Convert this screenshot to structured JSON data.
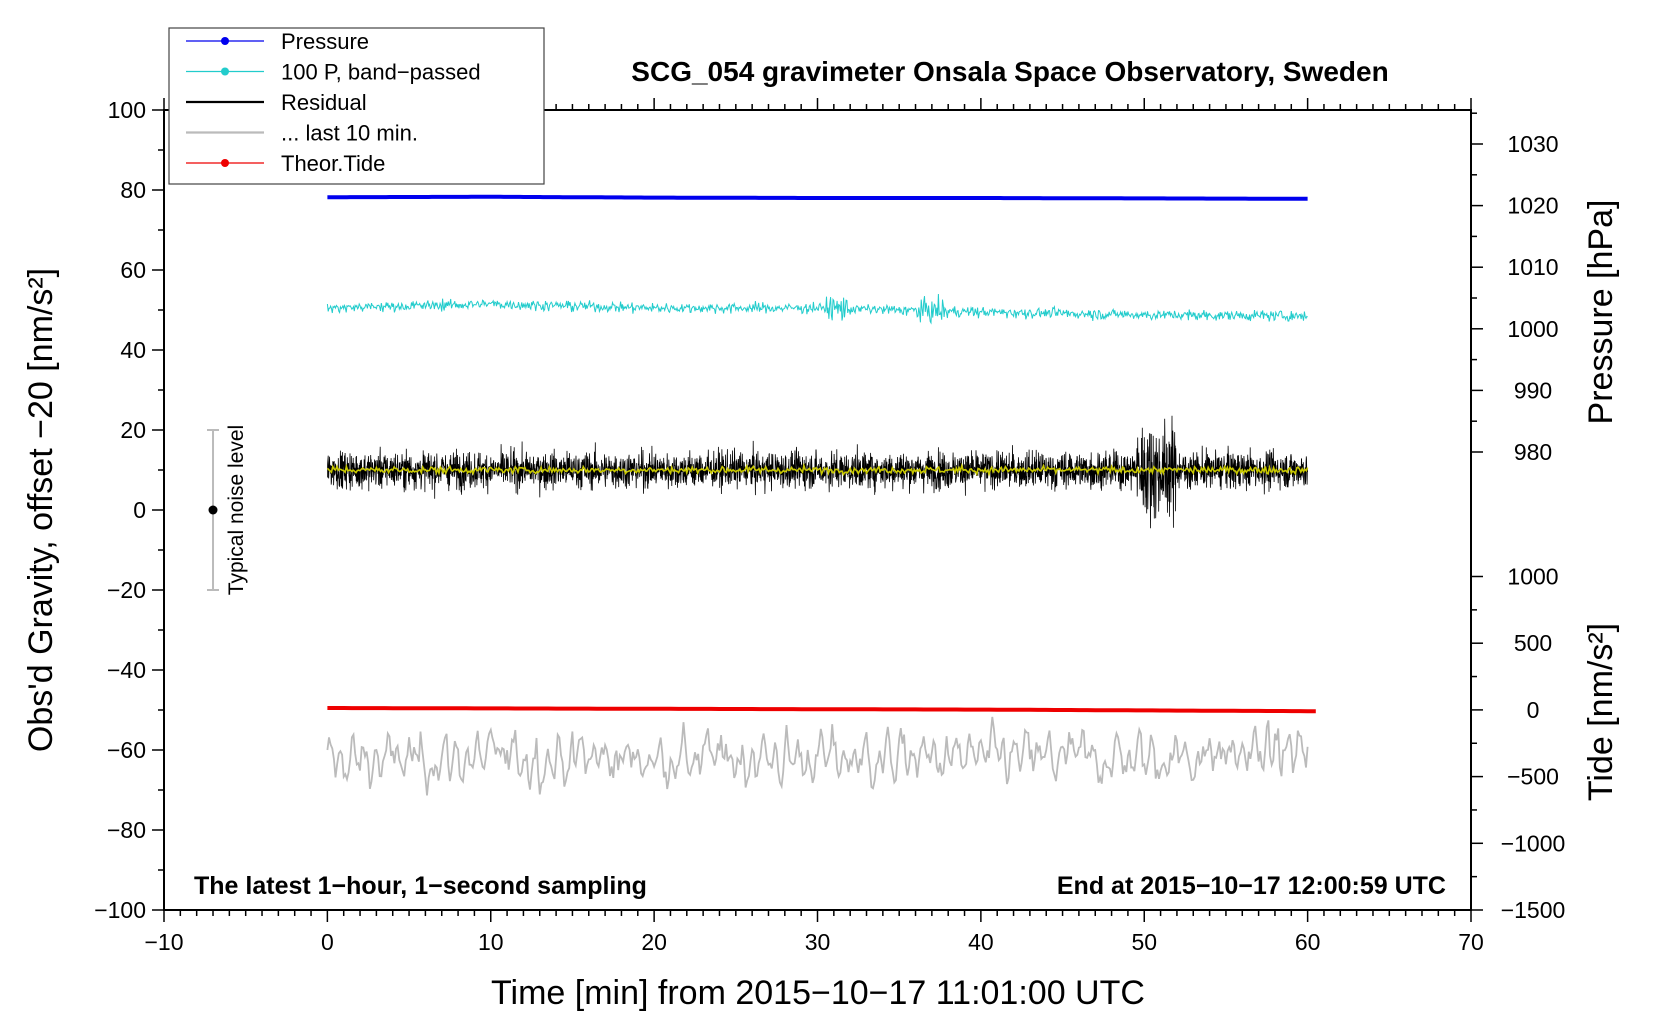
{
  "chart_data": {
    "type": "line",
    "title": "SCG_054 gravimeter Onsala Space Observatory, Sweden",
    "xlabel": "Time [min] from 2015−10−17 11:01:00 UTC",
    "ylabel": "Obs'd Gravity, offset −20 [nm/s²]",
    "xlim": [
      -10,
      70
    ],
    "ylim": [
      -100,
      100
    ],
    "x_ticks": [
      "−10",
      "0",
      "10",
      "20",
      "30",
      "40",
      "50",
      "60",
      "70"
    ],
    "y_ticks": [
      "−100",
      "−80",
      "−60",
      "−40",
      "−20",
      "0",
      "20",
      "40",
      "60",
      "80",
      "100"
    ],
    "right_axis_pressure": {
      "label": "Pressure [hPa]",
      "ticks": [
        "980",
        "990",
        "1000",
        "1010",
        "1020",
        "1030"
      ]
    },
    "right_axis_tide": {
      "label": "Tide [nm/s²]",
      "ticks": [
        "−1500",
        "−1000",
        "−500",
        "0",
        "500",
        "1000"
      ]
    },
    "annotations": {
      "bottom_left": "The latest 1−hour, 1−second sampling",
      "bottom_right": "End at 2015−10−17 12:00:59 UTC",
      "noise_bar": "Typical noise level"
    },
    "legend": {
      "placement": "top-left",
      "entries": [
        {
          "name": "Pressure",
          "color": "#0000ee",
          "marker": true
        },
        {
          "name": "100 P, band−passed",
          "color": "#22cccc",
          "marker": true
        },
        {
          "name": "Residual",
          "color": "#000000",
          "marker": false
        },
        {
          "name": "... last 10 min.",
          "color": "#bbbbbb",
          "marker": false
        },
        {
          "name": "Theor.Tide",
          "color": "#ee0000",
          "marker": true
        }
      ]
    },
    "series": [
      {
        "name": "Pressure",
        "color": "#0000ee",
        "x": [
          0,
          10,
          20,
          30,
          40,
          50,
          60
        ],
        "y": [
          78.2,
          78.3,
          78.1,
          78.0,
          78.0,
          77.9,
          77.8
        ]
      },
      {
        "name": "100 P, band−passed",
        "color": "#22cccc",
        "x": [
          0,
          10,
          20,
          30,
          40,
          50,
          60
        ],
        "y": [
          50.5,
          51.5,
          50.5,
          50.5,
          49.5,
          48.8,
          48.5
        ]
      },
      {
        "name": "Residual",
        "color": "#000000",
        "x": [
          0,
          10,
          20,
          30,
          40,
          50,
          60
        ],
        "y": [
          10,
          10,
          10,
          10,
          10,
          10,
          10
        ]
      },
      {
        "name": "... last 10 min.",
        "color": "#bbbbbb",
        "x": [
          0,
          10,
          20,
          30,
          40,
          50,
          60
        ],
        "y": [
          -63,
          -62,
          -62,
          -62,
          -62,
          -62,
          -60
        ]
      },
      {
        "name": "Theor.Tide",
        "color": "#ee0000",
        "x": [
          0,
          10,
          20,
          30,
          40,
          50,
          60.5
        ],
        "y": [
          -49.5,
          -49.6,
          -49.7,
          -49.8,
          -49.9,
          -50.1,
          -50.3
        ]
      }
    ],
    "noise_level": {
      "x": -7,
      "y": 0,
      "low": -20,
      "high": 20
    },
    "colors": {
      "residual_smoothed": "#c8c800"
    }
  }
}
